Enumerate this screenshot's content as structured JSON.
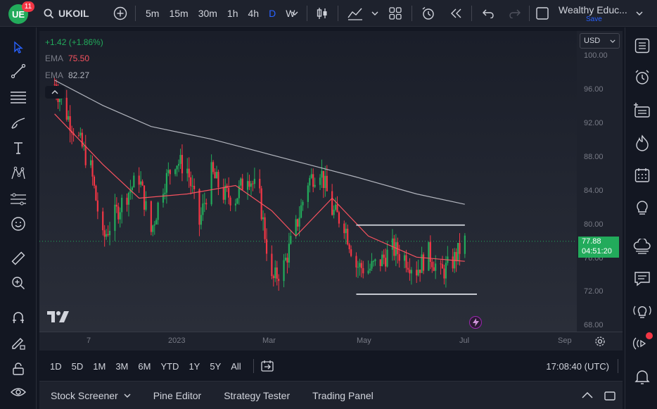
{
  "header": {
    "logo_text": "UE",
    "badge": "11",
    "symbol": "UKOIL",
    "intervals": [
      {
        "label": "5m",
        "active": false
      },
      {
        "label": "15m",
        "active": false
      },
      {
        "label": "30m",
        "active": false
      },
      {
        "label": "1h",
        "active": false
      },
      {
        "label": "4h",
        "active": false
      },
      {
        "label": "D",
        "active": true
      },
      {
        "label": "W",
        "active": false
      }
    ],
    "layout_name": "Wealthy Educ...",
    "layout_save": "Save"
  },
  "legend": {
    "change": "+1.42 (+1.86%)",
    "ema1_label": "EMA",
    "ema1_value": "75.50",
    "ema2_label": "EMA",
    "ema2_value": "82.27",
    "color_up": "#22ab5b",
    "color_ema1": "#f7525f",
    "color_ema2": "#787b86"
  },
  "price_scale": {
    "currency": "USD",
    "ticks": [
      "100.00",
      "96.00",
      "92.00",
      "88.00",
      "84.00",
      "80.00",
      "76.00",
      "72.00",
      "68.00"
    ],
    "last_price": "77.88",
    "countdown": "04:51:20"
  },
  "time_axis": {
    "ticks": [
      "7",
      "2023",
      "Mar",
      "May",
      "Jul",
      "Sep"
    ]
  },
  "bottom_toolbar": {
    "ranges": [
      "1D",
      "5D",
      "1M",
      "3M",
      "6M",
      "YTD",
      "1Y",
      "5Y",
      "All"
    ],
    "clock": "17:08:40 (UTC)"
  },
  "bottom_panel": {
    "tabs": [
      "Stock Screener",
      "Pine Editor",
      "Strategy Tester",
      "Trading Panel"
    ]
  },
  "chart_data": {
    "type": "candlestick",
    "symbol": "UKOIL",
    "interval": "D",
    "ylim": [
      68,
      100
    ],
    "y_ticks": [
      100,
      96,
      92,
      88,
      84,
      80,
      76,
      72,
      68
    ],
    "x_ticks": [
      "7",
      "2023",
      "Mar",
      "May",
      "Jul",
      "Sep"
    ],
    "last_price": 77.88,
    "change": "+1.42 (+1.86%)",
    "close_path": [
      [
        "2022-11-07",
        96.5
      ],
      [
        "2022-11-14",
        93.0
      ],
      [
        "2022-11-21",
        90.0
      ],
      [
        "2022-11-28",
        86.5
      ],
      [
        "2022-12-05",
        78.0
      ],
      [
        "2022-12-12",
        81.0
      ],
      [
        "2022-12-19",
        83.5
      ],
      [
        "2022-12-26",
        85.5
      ],
      [
        "2023-01-02",
        79.0
      ],
      [
        "2023-01-09",
        84.5
      ],
      [
        "2023-01-16",
        87.5
      ],
      [
        "2023-01-23",
        86.5
      ],
      [
        "2023-01-30",
        80.0
      ],
      [
        "2023-02-06",
        86.0
      ],
      [
        "2023-02-13",
        83.5
      ],
      [
        "2023-02-20",
        83.0
      ],
      [
        "2023-02-27",
        86.0
      ],
      [
        "2023-03-06",
        83.0
      ],
      [
        "2023-03-13",
        73.0
      ],
      [
        "2023-03-20",
        75.0
      ],
      [
        "2023-03-27",
        79.5
      ],
      [
        "2023-04-03",
        85.0
      ],
      [
        "2023-04-10",
        86.5
      ],
      [
        "2023-04-17",
        81.5
      ],
      [
        "2023-04-24",
        80.0
      ],
      [
        "2023-05-01",
        75.0
      ],
      [
        "2023-05-08",
        74.5
      ],
      [
        "2023-05-15",
        75.5
      ],
      [
        "2023-05-22",
        77.0
      ],
      [
        "2023-05-29",
        76.0
      ],
      [
        "2023-06-05",
        74.5
      ],
      [
        "2023-06-12",
        76.5
      ],
      [
        "2023-06-19",
        74.0
      ],
      [
        "2023-06-26",
        75.5
      ],
      [
        "2023-07-03",
        77.88
      ]
    ],
    "ema_fast_path": [
      [
        "2022-11-07",
        93.0
      ],
      [
        "2022-12-05",
        87.0
      ],
      [
        "2022-12-26",
        83.0
      ],
      [
        "2023-01-23",
        83.5
      ],
      [
        "2023-02-20",
        84.5
      ],
      [
        "2023-03-13",
        81.5
      ],
      [
        "2023-03-27",
        78.5
      ],
      [
        "2023-04-17",
        83.0
      ],
      [
        "2023-05-08",
        78.5
      ],
      [
        "2023-06-05",
        76.0
      ],
      [
        "2023-07-03",
        75.5
      ]
    ],
    "ema_slow_path": [
      [
        "2022-11-07",
        97.0
      ],
      [
        "2022-12-05",
        94.0
      ],
      [
        "2023-01-02",
        91.5
      ],
      [
        "2023-02-06",
        90.0
      ],
      [
        "2023-03-06",
        88.5
      ],
      [
        "2023-04-03",
        87.0
      ],
      [
        "2023-05-01",
        85.5
      ],
      [
        "2023-06-05",
        83.5
      ],
      [
        "2023-07-03",
        82.27
      ]
    ],
    "horizontal_lines": [
      {
        "from": "2023-05-01",
        "to": "2023-07-03",
        "price": 79.8
      },
      {
        "from": "2023-05-01",
        "to": "2023-07-10",
        "price": 71.6
      }
    ]
  }
}
